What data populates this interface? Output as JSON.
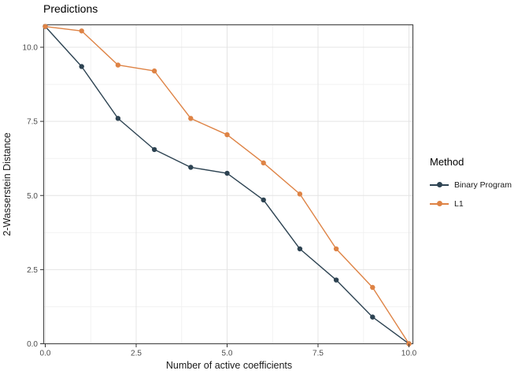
{
  "chart_data": {
    "type": "line",
    "title": "Predictions",
    "xlabel": "Number of active coefficients",
    "ylabel": "2-Wasserstein Distance",
    "x": [
      0,
      1,
      2,
      3,
      4,
      5,
      6,
      7,
      8,
      9,
      10
    ],
    "series": [
      {
        "name": "Binary Program",
        "color": "#2d4352",
        "values": [
          10.7,
          9.35,
          7.6,
          6.55,
          5.95,
          5.75,
          4.85,
          3.2,
          2.15,
          0.9,
          0.0
        ]
      },
      {
        "name": "L1",
        "color": "#de8345",
        "values": [
          10.7,
          10.55,
          9.4,
          9.2,
          7.6,
          7.05,
          6.1,
          5.05,
          3.2,
          1.9,
          0.0
        ]
      }
    ],
    "xlim": [
      0,
      10
    ],
    "ylim": [
      0,
      10.72
    ],
    "x_ticks": [
      0,
      2.5,
      5,
      7.5,
      10
    ],
    "x_tick_labels": [
      "0.0",
      "2.5",
      "5.0",
      "7.5",
      "10.0"
    ],
    "y_ticks": [
      0,
      2.5,
      5,
      7.5,
      10
    ],
    "y_tick_labels": [
      "0.0",
      "2.5",
      "5.0",
      "7.5",
      "10.0"
    ],
    "minor_ticks": [
      1.25,
      3.75,
      6.25,
      8.75
    ],
    "grid": true,
    "legend": {
      "title": "Method",
      "position": "right"
    }
  },
  "colors": {
    "background": "#ffffff",
    "grid_major": "#e4e4e4",
    "grid_minor": "#f2f2f2",
    "panel_border": "#4d4d4d",
    "tick": "#333333",
    "tick_label": "#4d4d4d",
    "axis_title": "#1a1a1a",
    "title": "#000000"
  }
}
